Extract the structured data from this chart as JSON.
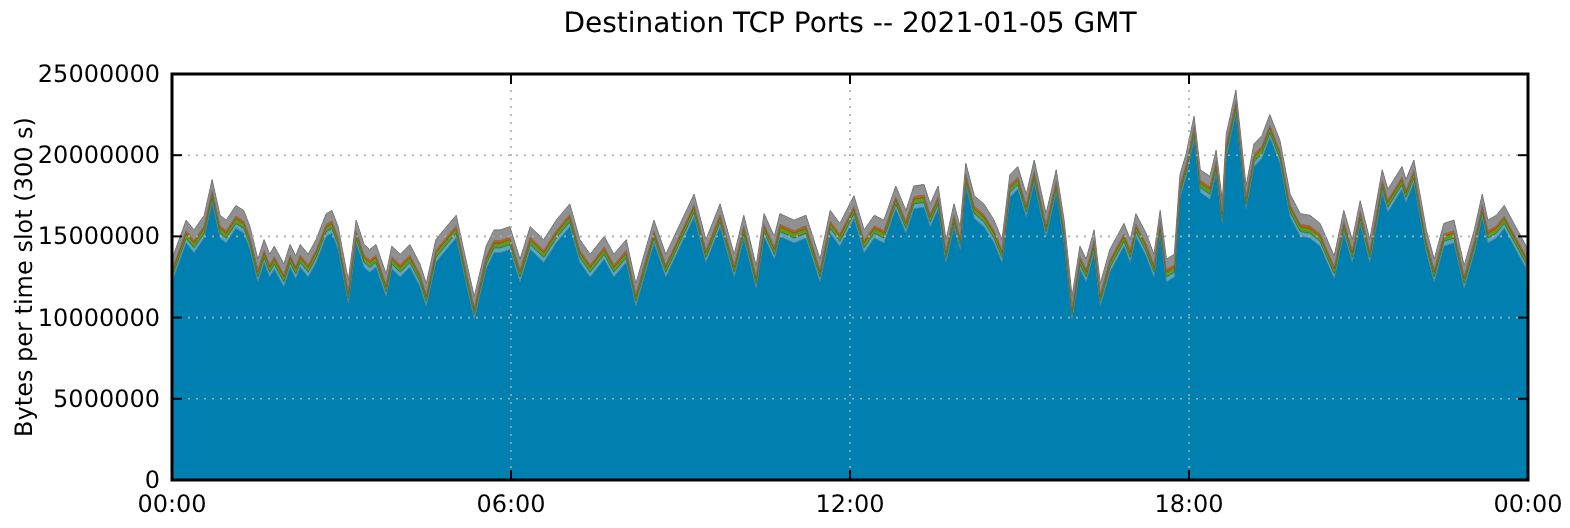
{
  "chart_data": {
    "type": "area",
    "stacked": true,
    "title": "Destination TCP Ports -- 2021-01-05 GMT",
    "ylabel": "Bytes per time slot (300 s)",
    "x": [
      0,
      0.25,
      0.39,
      0.57,
      0.71,
      0.85,
      0.96,
      1.13,
      1.27,
      1.38,
      1.52,
      1.63,
      1.73,
      1.81,
      1.98,
      2.09,
      2.19,
      2.27,
      2.41,
      2.55,
      2.73,
      2.83,
      2.94,
      3.12,
      3.26,
      3.4,
      3.5,
      3.61,
      3.79,
      3.89,
      4.04,
      4.21,
      4.39,
      4.5,
      4.67,
      4.81,
      5.03,
      5.2,
      5.35,
      5.56,
      5.7,
      5.81,
      5.98,
      6.16,
      6.34,
      6.58,
      6.8,
      7.04,
      7.22,
      7.4,
      7.65,
      7.82,
      8.04,
      8.21,
      8.53,
      8.74,
      9.24,
      9.45,
      9.7,
      9.95,
      10.12,
      10.34,
      10.48,
      10.66,
      10.76,
      11.01,
      11.22,
      11.47,
      11.65,
      11.82,
      12.07,
      12.25,
      12.43,
      12.6,
      12.81,
      12.99,
      13.13,
      13.31,
      13.42,
      13.56,
      13.7,
      13.84,
      13.95,
      14.05,
      14.2,
      14.37,
      14.55,
      14.69,
      14.83,
      14.97,
      15.12,
      15.26,
      15.47,
      15.65,
      15.79,
      15.93,
      16.07,
      16.18,
      16.32,
      16.43,
      16.6,
      16.85,
      16.96,
      17.06,
      17.24,
      17.38,
      17.49,
      17.6,
      17.74,
      17.84,
      17.95,
      18.09,
      18.2,
      18.37,
      18.48,
      18.59,
      18.66,
      18.83,
      19.01,
      19.15,
      19.29,
      19.43,
      19.61,
      19.79,
      19.97,
      20.14,
      20.32,
      20.57,
      20.74,
      20.89,
      21.03,
      21.2,
      21.42,
      21.52,
      21.77,
      21.84,
      21.98,
      22.2,
      22.34,
      22.51,
      22.69,
      22.87,
      23.05,
      23.19,
      23.29,
      23.44,
      23.58,
      23.75,
      23.97,
      24
    ],
    "series": [
      {
        "color": "#0080b0",
        "values": [
          12200000,
          14600000,
          14000000,
          14900000,
          17100000,
          14900000,
          14600000,
          15500000,
          15200000,
          14200000,
          12200000,
          13400000,
          12500000,
          13000000,
          11900000,
          13100000,
          12400000,
          13100000,
          12500000,
          13400000,
          15000000,
          15200000,
          14200000,
          10900000,
          14600000,
          13100000,
          12800000,
          13100000,
          11300000,
          13000000,
          12500000,
          13100000,
          11900000,
          10700000,
          13400000,
          14000000,
          14900000,
          12200000,
          9900000,
          13000000,
          14000000,
          14000000,
          14200000,
          12200000,
          14200000,
          13400000,
          14600000,
          15600000,
          13400000,
          12500000,
          13600000,
          12500000,
          13400000,
          10700000,
          14600000,
          12500000,
          16200000,
          13400000,
          15600000,
          12500000,
          14900000,
          11800000,
          15000000,
          13600000,
          15000000,
          14600000,
          14900000,
          12200000,
          15200000,
          14400000,
          16100000,
          14000000,
          14900000,
          14600000,
          16700000,
          15200000,
          16700000,
          16800000,
          15600000,
          16700000,
          13400000,
          15600000,
          14200000,
          18100000,
          16100000,
          15600000,
          14600000,
          13400000,
          17400000,
          17900000,
          16200000,
          18300000,
          15000000,
          17700000,
          14600000,
          9900000,
          13000000,
          12200000,
          14000000,
          10700000,
          12800000,
          14400000,
          13400000,
          15000000,
          13800000,
          12500000,
          15200000,
          12200000,
          12500000,
          17400000,
          18700000,
          21000000,
          17700000,
          17300000,
          18900000,
          15800000,
          19900000,
          22600000,
          16700000,
          19300000,
          19800000,
          21100000,
          19500000,
          16200000,
          15000000,
          14900000,
          14400000,
          12400000,
          15200000,
          13400000,
          15800000,
          13400000,
          17700000,
          16500000,
          17900000,
          17100000,
          18300000,
          14000000,
          12200000,
          14400000,
          14600000,
          11800000,
          14000000,
          16200000,
          14600000,
          14900000,
          15500000,
          14400000,
          13000000,
          7800000
        ]
      },
      {
        "color": "#5aa6c8",
        "values": [
          300000,
          300000,
          300000,
          300000,
          300000,
          300000,
          300000,
          300000,
          300000,
          300000,
          300000,
          300000,
          300000,
          300000,
          300000,
          300000,
          300000,
          300000,
          300000,
          300000,
          300000,
          300000,
          300000,
          300000,
          300000,
          300000,
          300000,
          300000,
          300000,
          300000,
          300000,
          300000,
          300000,
          300000,
          300000,
          300000,
          300000,
          300000,
          300000,
          300000,
          300000,
          300000,
          300000,
          300000,
          300000,
          300000,
          300000,
          300000,
          300000,
          300000,
          300000,
          300000,
          300000,
          300000,
          300000,
          300000,
          300000,
          300000,
          300000,
          300000,
          300000,
          300000,
          300000,
          300000,
          300000,
          300000,
          300000,
          300000,
          300000,
          300000,
          300000,
          300000,
          300000,
          300000,
          300000,
          300000,
          300000,
          300000,
          300000,
          300000,
          300000,
          300000,
          300000,
          300000,
          300000,
          300000,
          300000,
          300000,
          300000,
          300000,
          300000,
          300000,
          300000,
          300000,
          300000,
          300000,
          300000,
          300000,
          300000,
          300000,
          300000,
          300000,
          300000,
          300000,
          300000,
          300000,
          300000,
          300000,
          300000,
          300000,
          300000,
          300000,
          300000,
          300000,
          300000,
          300000,
          300000,
          300000,
          300000,
          300000,
          300000,
          300000,
          300000,
          300000,
          300000,
          300000,
          300000,
          300000,
          300000,
          300000,
          300000,
          300000,
          300000,
          300000,
          300000,
          300000,
          300000,
          300000,
          300000,
          300000,
          300000,
          300000,
          300000,
          300000,
          300000,
          300000,
          300000,
          300000,
          300000,
          300000
        ]
      },
      {
        "color": "#5a9a28",
        "values": [
          300000,
          300000,
          300000,
          300000,
          300000,
          300000,
          300000,
          300000,
          300000,
          300000,
          300000,
          300000,
          300000,
          300000,
          300000,
          300000,
          300000,
          300000,
          300000,
          300000,
          300000,
          300000,
          300000,
          300000,
          300000,
          300000,
          300000,
          300000,
          300000,
          300000,
          300000,
          300000,
          300000,
          300000,
          300000,
          300000,
          300000,
          300000,
          300000,
          300000,
          300000,
          300000,
          300000,
          300000,
          300000,
          300000,
          300000,
          300000,
          300000,
          300000,
          300000,
          300000,
          300000,
          300000,
          300000,
          300000,
          300000,
          300000,
          300000,
          300000,
          300000,
          300000,
          300000,
          300000,
          300000,
          300000,
          300000,
          300000,
          300000,
          300000,
          300000,
          300000,
          300000,
          300000,
          300000,
          300000,
          300000,
          300000,
          300000,
          300000,
          300000,
          300000,
          300000,
          300000,
          300000,
          300000,
          300000,
          300000,
          300000,
          300000,
          300000,
          300000,
          300000,
          300000,
          300000,
          300000,
          300000,
          300000,
          300000,
          300000,
          300000,
          300000,
          300000,
          300000,
          300000,
          300000,
          300000,
          300000,
          300000,
          300000,
          300000,
          300000,
          300000,
          300000,
          300000,
          300000,
          300000,
          300000,
          300000,
          300000,
          300000,
          300000,
          300000,
          300000,
          300000,
          300000,
          300000,
          300000,
          300000,
          300000,
          300000,
          300000,
          300000,
          300000,
          300000,
          300000,
          300000,
          300000,
          300000,
          300000,
          300000,
          300000,
          300000,
          300000,
          300000,
          300000,
          300000,
          300000,
          300000,
          300000
        ]
      },
      {
        "color": "#c86400",
        "values": [
          150000,
          150000,
          150000,
          150000,
          150000,
          150000,
          150000,
          150000,
          150000,
          150000,
          150000,
          150000,
          150000,
          150000,
          150000,
          150000,
          150000,
          150000,
          150000,
          150000,
          150000,
          150000,
          150000,
          150000,
          150000,
          150000,
          150000,
          150000,
          150000,
          150000,
          150000,
          150000,
          150000,
          150000,
          150000,
          150000,
          150000,
          150000,
          150000,
          150000,
          150000,
          150000,
          150000,
          150000,
          150000,
          150000,
          150000,
          150000,
          150000,
          150000,
          150000,
          150000,
          150000,
          150000,
          150000,
          150000,
          150000,
          150000,
          150000,
          150000,
          150000,
          150000,
          150000,
          150000,
          150000,
          150000,
          150000,
          150000,
          150000,
          150000,
          150000,
          150000,
          150000,
          150000,
          150000,
          150000,
          150000,
          150000,
          150000,
          150000,
          150000,
          150000,
          150000,
          150000,
          150000,
          150000,
          150000,
          150000,
          150000,
          150000,
          150000,
          150000,
          150000,
          150000,
          150000,
          150000,
          150000,
          150000,
          150000,
          150000,
          150000,
          150000,
          150000,
          150000,
          150000,
          150000,
          150000,
          150000,
          150000,
          150000,
          150000,
          150000,
          150000,
          150000,
          150000,
          150000,
          150000,
          150000,
          150000,
          150000,
          150000,
          150000,
          150000,
          150000,
          150000,
          150000,
          150000,
          150000,
          150000,
          150000,
          150000,
          150000,
          150000,
          150000,
          150000,
          150000,
          150000,
          150000,
          150000,
          150000,
          150000,
          150000,
          150000,
          150000,
          150000,
          150000,
          150000,
          150000,
          150000,
          150000
        ]
      },
      {
        "color": "#909090",
        "values": [
          650000,
          650000,
          650000,
          650000,
          650000,
          650000,
          650000,
          650000,
          650000,
          650000,
          650000,
          650000,
          650000,
          650000,
          650000,
          650000,
          650000,
          650000,
          650000,
          650000,
          650000,
          650000,
          650000,
          650000,
          650000,
          650000,
          650000,
          650000,
          650000,
          650000,
          650000,
          650000,
          650000,
          650000,
          650000,
          650000,
          650000,
          650000,
          650000,
          650000,
          650000,
          650000,
          650000,
          650000,
          650000,
          650000,
          650000,
          650000,
          650000,
          650000,
          650000,
          650000,
          650000,
          650000,
          650000,
          650000,
          650000,
          650000,
          650000,
          650000,
          650000,
          650000,
          650000,
          650000,
          650000,
          650000,
          650000,
          650000,
          650000,
          650000,
          650000,
          650000,
          650000,
          650000,
          650000,
          650000,
          650000,
          650000,
          650000,
          650000,
          650000,
          650000,
          650000,
          650000,
          650000,
          650000,
          650000,
          650000,
          650000,
          650000,
          650000,
          650000,
          650000,
          650000,
          650000,
          650000,
          650000,
          650000,
          650000,
          650000,
          650000,
          650000,
          650000,
          650000,
          650000,
          650000,
          650000,
          650000,
          650000,
          650000,
          650000,
          650000,
          650000,
          650000,
          650000,
          650000,
          650000,
          650000,
          650000,
          650000,
          650000,
          650000,
          650000,
          650000,
          650000,
          650000,
          650000,
          650000,
          650000,
          650000,
          650000,
          650000,
          650000,
          650000,
          650000,
          650000,
          650000,
          650000,
          650000,
          650000,
          650000,
          650000,
          650000,
          650000,
          650000,
          650000,
          650000,
          650000,
          650000,
          650000
        ]
      }
    ],
    "xlim": [
      0,
      24
    ],
    "xticks": [
      {
        "value": 0,
        "label": "00:00"
      },
      {
        "value": 6,
        "label": "06:00"
      },
      {
        "value": 12,
        "label": "12:00"
      },
      {
        "value": 18,
        "label": "18:00"
      },
      {
        "value": 24,
        "label": "00:00"
      }
    ],
    "ylim": [
      0,
      25000000
    ],
    "yticks": [
      0,
      5000000,
      10000000,
      15000000,
      20000000,
      25000000
    ],
    "grid": true
  }
}
